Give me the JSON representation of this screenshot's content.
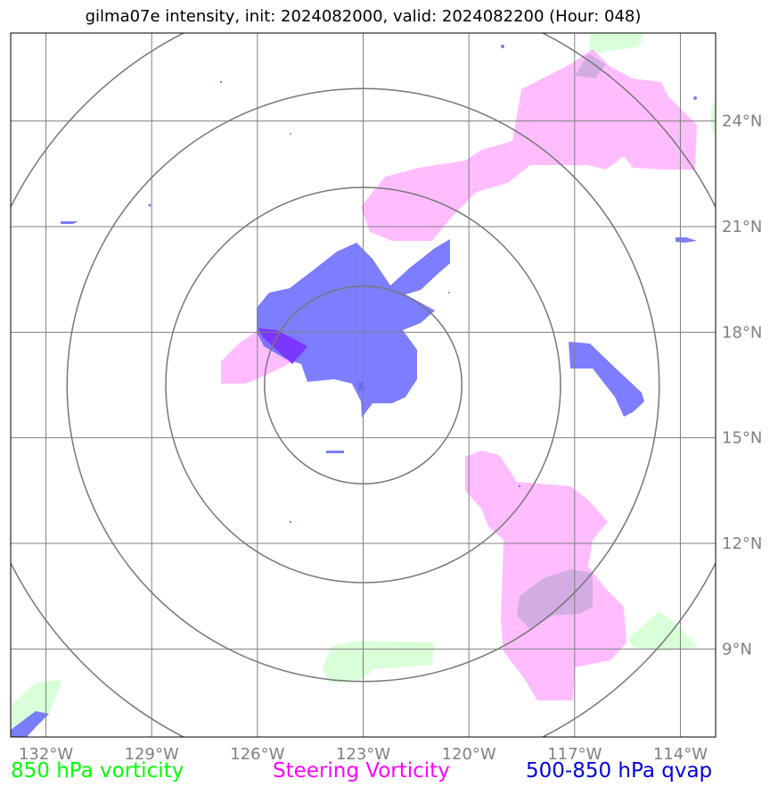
{
  "title": "gilma07e intensity, init: 2024082000, valid: 2024082200 (Hour: 048)",
  "map": {
    "lon_range": [
      -133,
      -113
    ],
    "lat_range": [
      6.5,
      26.5
    ],
    "lon_ticks": [
      {
        "lon": -132,
        "label": "132°W"
      },
      {
        "lon": -129,
        "label": "129°W"
      },
      {
        "lon": -126,
        "label": "126°W"
      },
      {
        "lon": -123,
        "label": "123°W"
      },
      {
        "lon": -120,
        "label": "120°W"
      },
      {
        "lon": -117,
        "label": "117°W"
      },
      {
        "lon": -114,
        "label": "114°W"
      }
    ],
    "lat_ticks": [
      {
        "lat": 24,
        "label": "24°N"
      },
      {
        "lat": 21,
        "label": "21°N"
      },
      {
        "lat": 18,
        "label": "18°N"
      },
      {
        "lat": 15,
        "label": "15°N"
      },
      {
        "lat": 12,
        "label": "12°N"
      },
      {
        "lat": 9,
        "label": "9°N"
      }
    ],
    "storm_center": {
      "lon": -123,
      "lat": 16.5
    },
    "range_ring_radii_deg": [
      2.8,
      5.6,
      8.4,
      11.2
    ],
    "colors": {
      "vorticity_850": "#ccffcc",
      "steering_vorticity": "#ffb3ff",
      "qvap": "#6666ff",
      "grid": "#808080",
      "rings": "#777777"
    }
  },
  "legend": {
    "vorticity_850": "850 hPa vorticity",
    "steering": "Steering Vorticity",
    "qvap": "500-850 hPa qvap"
  }
}
